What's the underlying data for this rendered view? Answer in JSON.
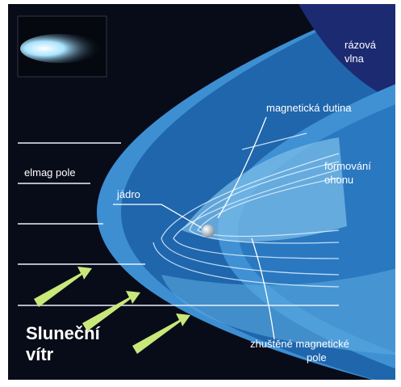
{
  "labels": {
    "shock_wave": [
      "rázová",
      "vlna"
    ],
    "magnetic_cavity": "magnetická dutina",
    "tail_formation": [
      "formování",
      "ohonu"
    ],
    "em_field": "elmag pole",
    "nucleus": "jádro",
    "solar_wind": [
      "Sluneční",
      "vítr"
    ],
    "compressed_field": [
      "zhuštěné magnetické",
      "pole"
    ]
  }
}
